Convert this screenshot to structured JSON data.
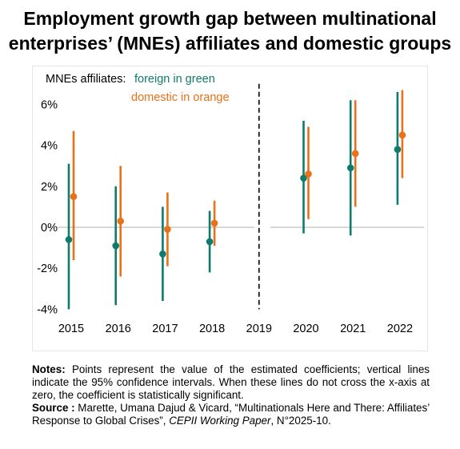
{
  "title_line1": "Employment growth gap between multinational",
  "title_line2": "enterprises’ (MNEs) affiliates and domestic groups",
  "chart_data": {
    "type": "scatter",
    "categories": [
      "2015",
      "2016",
      "2017",
      "2018",
      "2019",
      "2020",
      "2021",
      "2022"
    ],
    "ylim": [
      -4,
      7
    ],
    "yticks": [
      -4,
      -2,
      0,
      2,
      4,
      6
    ],
    "ytick_labels": [
      "-4%",
      "-2%",
      "0%",
      "2%",
      "4%",
      "6%"
    ],
    "legend_prefix": "MNEs affiliates:",
    "legend_foreign": "foreign in green",
    "legend_domestic": "domestic in orange",
    "reference_year": "2019",
    "reference_line": "dashed vertical at 2019",
    "zero_line": true,
    "series": [
      {
        "name": "foreign",
        "color": "#0f7b6c",
        "years": [
          "2015",
          "2016",
          "2017",
          "2018",
          "2020",
          "2021",
          "2022"
        ],
        "values": [
          -0.6,
          -0.9,
          -1.3,
          -0.7,
          2.4,
          2.9,
          3.8
        ],
        "ci_low": [
          -4.0,
          -3.8,
          -3.6,
          -2.2,
          -0.3,
          -0.4,
          1.1
        ],
        "ci_high": [
          3.1,
          2.0,
          1.0,
          0.8,
          5.2,
          6.2,
          6.6
        ]
      },
      {
        "name": "domestic",
        "color": "#e8711a",
        "years": [
          "2015",
          "2016",
          "2017",
          "2018",
          "2020",
          "2021",
          "2022"
        ],
        "values": [
          1.5,
          0.3,
          -0.1,
          0.2,
          2.6,
          3.6,
          4.5
        ],
        "ci_low": [
          -1.6,
          -2.4,
          -1.9,
          -0.9,
          0.4,
          1.0,
          2.4
        ],
        "ci_high": [
          4.7,
          3.0,
          1.7,
          1.3,
          4.9,
          6.2,
          6.7
        ]
      }
    ]
  },
  "notes_label": "Notes:",
  "notes_text": " Points represent the value of the estimated coefficients; vertical lines indicate the 95% confidence intervals. When these lines do not cross the x-axis at zero, the coefficient is statistically significant.",
  "source_label": "Source :",
  "source_text_1": " Marette, Umana Dajud & Vicard, “Multinationals Here and There: Affiliates’ Response to Global Crises”, ",
  "source_italic": "CEPII Working Paper",
  "source_text_2": ", N°2025-10."
}
